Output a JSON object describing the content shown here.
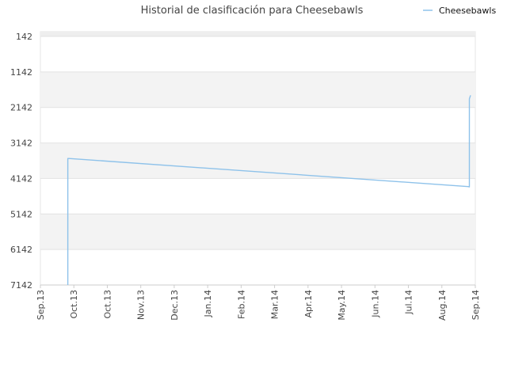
{
  "chart_data": {
    "type": "line",
    "title": "Historial de clasificación para Cheesebawls",
    "xlabel": "",
    "ylabel": "",
    "legend_position": "top-right",
    "grid": true,
    "y_inverted": true,
    "ylim": [
      142,
      7142
    ],
    "y_ticks": [
      "142",
      "1142",
      "2142",
      "3142",
      "4142",
      "5142",
      "6142",
      "7142"
    ],
    "x_ticks": [
      "Sep.13",
      "Oct.13",
      "Oct.13",
      "Nov.13",
      "Dec.13",
      "Jan.14",
      "Feb.14",
      "Mar.14",
      "Apr.14",
      "May.14",
      "Jun.14",
      "Jul.14",
      "Aug.14",
      "Sep.14"
    ],
    "x_range": [
      "2013-09-01",
      "2014-09-01"
    ],
    "series": [
      {
        "name": "Cheesebawls",
        "color": "#8ec2ea",
        "points": [
          [
            "2013-09-24",
            7142
          ],
          [
            "2013-09-24",
            3640
          ],
          [
            "2013-09-24",
            3580
          ],
          [
            "2013-09-25",
            3580
          ],
          [
            "2014-08-26",
            4370
          ],
          [
            "2014-08-27",
            4380
          ],
          [
            "2014-08-27",
            3100
          ],
          [
            "2014-08-27",
            2800
          ],
          [
            "2014-08-27",
            1900
          ],
          [
            "2014-08-28",
            1800
          ]
        ]
      }
    ]
  }
}
